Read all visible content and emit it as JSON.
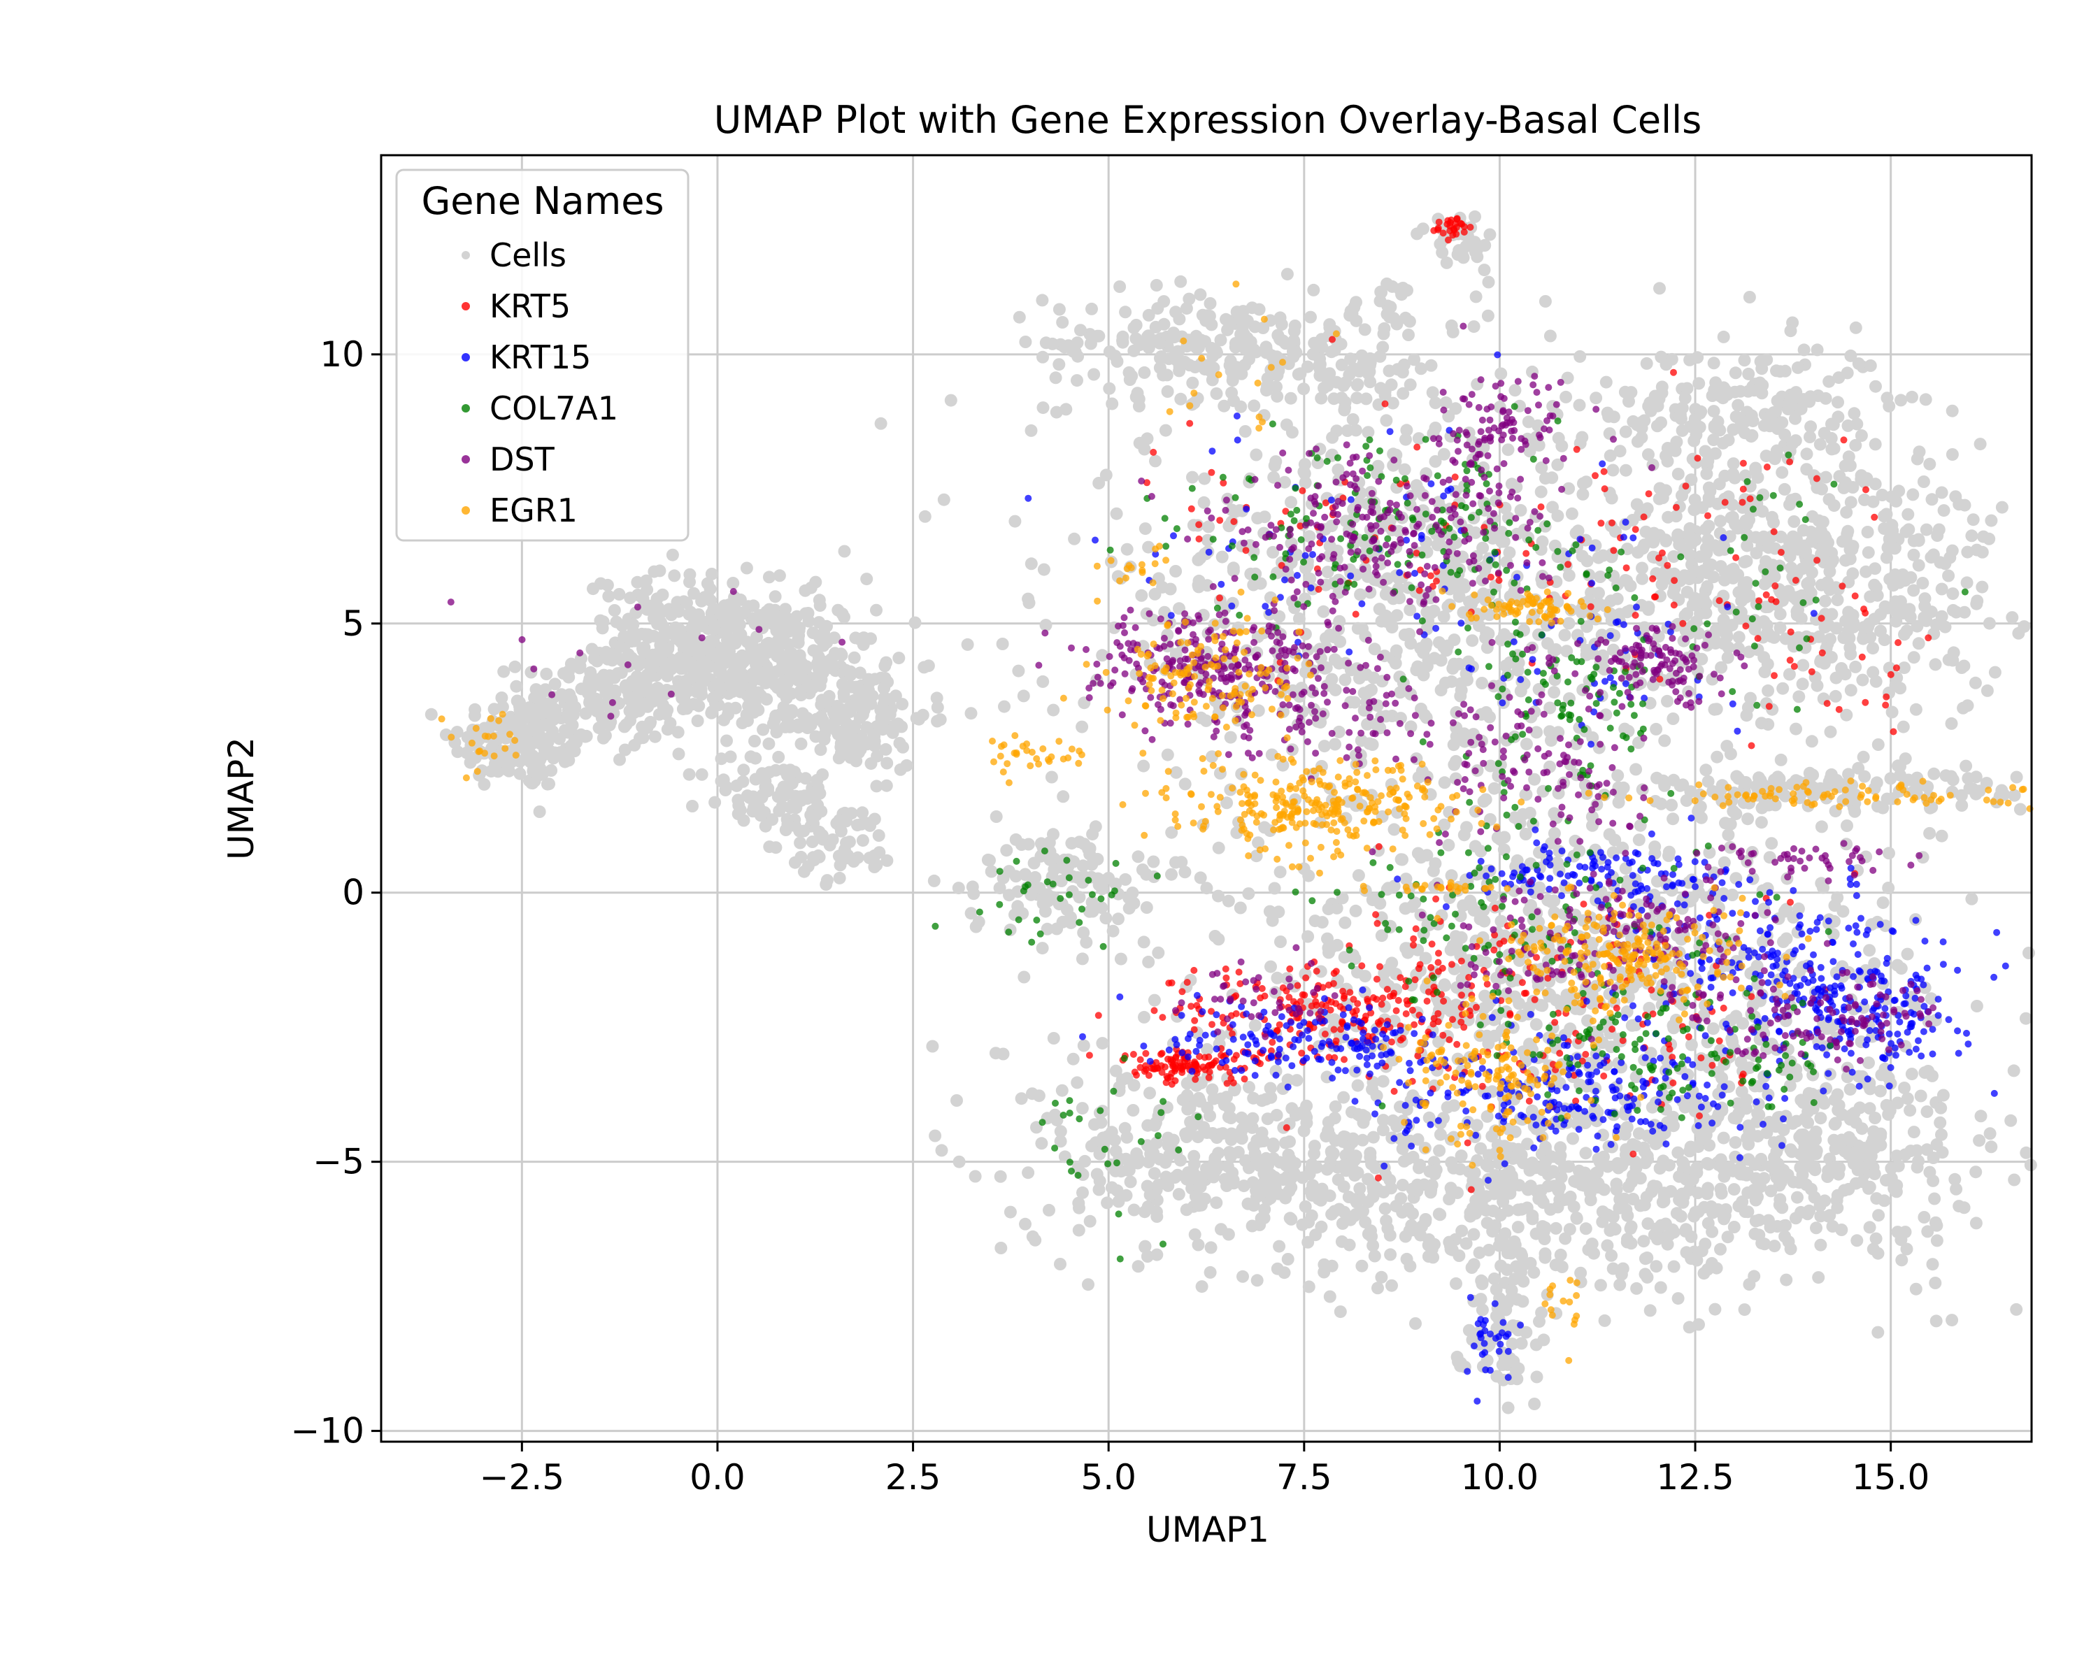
{
  "chart_data": {
    "type": "scatter",
    "title": "UMAP Plot with Gene Expression Overlay-Basal Cells",
    "xlabel": "UMAP1",
    "ylabel": "UMAP2",
    "xlim": [
      -4.3,
      16.8
    ],
    "ylim": [
      -10.2,
      13.7
    ],
    "xticks": [
      -2.5,
      0.0,
      2.5,
      5.0,
      7.5,
      10.0,
      12.5,
      15.0
    ],
    "xtick_labels": [
      "−2.5",
      "0.0",
      "2.5",
      "5.0",
      "7.5",
      "10.0",
      "12.5",
      "15.0"
    ],
    "yticks": [
      -10,
      -5,
      0,
      5,
      10
    ],
    "ytick_labels": [
      "−10",
      "−5",
      "0",
      "5",
      "10"
    ],
    "grid": true,
    "legend": {
      "title": "Gene Names",
      "placement": "upper-left",
      "entries": [
        {
          "label": "Cells",
          "color": "#d3d3d3"
        },
        {
          "label": "KRT5",
          "color": "#ff0000"
        },
        {
          "label": "KRT15",
          "color": "#0000ff"
        },
        {
          "label": "COL7A1",
          "color": "#008000"
        },
        {
          "label": "DST",
          "color": "#800080"
        },
        {
          "label": "EGR1",
          "color": "#ffa500"
        }
      ]
    },
    "series": [
      {
        "name": "Cells",
        "color": "#d3d3d3",
        "clusters": [
          {
            "center": [
              -2.5,
              2.8
            ],
            "spread": [
              0.45,
              0.45
            ],
            "n": 160
          },
          {
            "center": [
              -1.5,
              3.6
            ],
            "spread": [
              0.5,
              0.5
            ],
            "n": 140
          },
          {
            "center": [
              -0.5,
              4.5
            ],
            "spread": [
              0.6,
              0.7
            ],
            "n": 260
          },
          {
            "center": [
              0.6,
              4.3
            ],
            "spread": [
              0.7,
              0.6
            ],
            "n": 260
          },
          {
            "center": [
              1.7,
              3.3
            ],
            "spread": [
              0.5,
              0.5
            ],
            "n": 170
          },
          {
            "center": [
              0.7,
              1.8
            ],
            "spread": [
              0.45,
              0.35
            ],
            "n": 80
          },
          {
            "center": [
              1.6,
              0.9
            ],
            "spread": [
              0.35,
              0.35
            ],
            "n": 60
          },
          {
            "center": [
              6.2,
              10.2
            ],
            "spread": [
              1.0,
              0.5
            ],
            "n": 200
          },
          {
            "center": [
              8.0,
              9.8
            ],
            "spread": [
              0.5,
              0.4
            ],
            "n": 70
          },
          {
            "center": [
              13.2,
              9.0
            ],
            "spread": [
              0.9,
              0.6
            ],
            "n": 180
          },
          {
            "center": [
              14.5,
              5.8
            ],
            "spread": [
              1.0,
              1.4
            ],
            "n": 330
          },
          {
            "center": [
              12.7,
              6.0
            ],
            "spread": [
              0.9,
              1.2
            ],
            "n": 240
          },
          {
            "center": [
              9.0,
              5.4
            ],
            "spread": [
              2.3,
              2.0
            ],
            "n": 900
          },
          {
            "center": [
              11.0,
              -1.5
            ],
            "spread": [
              2.2,
              1.6
            ],
            "n": 850
          },
          {
            "center": [
              11.0,
              -5.5
            ],
            "spread": [
              2.4,
              0.9
            ],
            "n": 700
          },
          {
            "center": [
              6.3,
              -4.8
            ],
            "spread": [
              1.1,
              0.9
            ],
            "n": 320
          },
          {
            "center": [
              14.3,
              -4.5
            ],
            "spread": [
              0.9,
              0.9
            ],
            "n": 200
          },
          {
            "center": [
              4.3,
              0.2
            ],
            "spread": [
              0.55,
              0.5
            ],
            "n": 120
          },
          {
            "center": [
              10.0,
              -7.6
            ],
            "spread": [
              0.3,
              0.9
            ],
            "n": 90
          },
          {
            "center": [
              14.0,
              1.9
            ],
            "spread": [
              1.5,
              0.2
            ],
            "n": 150
          },
          {
            "center": [
              9.5,
              12.1
            ],
            "spread": [
              0.2,
              0.3
            ],
            "n": 40
          },
          {
            "center": [
              8.6,
              10.8
            ],
            "spread": [
              0.12,
              0.3
            ],
            "n": 20
          }
        ]
      },
      {
        "name": "KRT5",
        "color": "#ff0000",
        "clusters": [
          {
            "center": [
              9.4,
              12.4
            ],
            "spread": [
              0.12,
              0.1
            ],
            "n": 25
          },
          {
            "center": [
              6.0,
              -3.2
            ],
            "spread": [
              0.5,
              0.15
            ],
            "n": 110
          },
          {
            "center": [
              7.8,
              -2.2
            ],
            "spread": [
              1.0,
              0.45
            ],
            "n": 190
          },
          {
            "center": [
              10.8,
              -2.2
            ],
            "spread": [
              1.6,
              1.2
            ],
            "n": 170
          },
          {
            "center": [
              12.2,
              6.3
            ],
            "spread": [
              1.6,
              1.2
            ],
            "n": 60
          },
          {
            "center": [
              14.0,
              4.5
            ],
            "spread": [
              0.8,
              1.0
            ],
            "n": 30
          },
          {
            "center": [
              8.5,
              6.5
            ],
            "spread": [
              1.5,
              1.0
            ],
            "n": 60
          }
        ]
      },
      {
        "name": "KRT15",
        "color": "#0000ff",
        "clusters": [
          {
            "center": [
              11.3,
              0.3
            ],
            "spread": [
              1.0,
              0.3
            ],
            "n": 120
          },
          {
            "center": [
              13.5,
              -1.3
            ],
            "spread": [
              0.9,
              0.8
            ],
            "n": 170
          },
          {
            "center": [
              14.7,
              -2.3
            ],
            "spread": [
              0.6,
              0.5
            ],
            "n": 150
          },
          {
            "center": [
              11.0,
              -3.8
            ],
            "spread": [
              1.3,
              0.5
            ],
            "n": 210
          },
          {
            "center": [
              7.6,
              -2.7
            ],
            "spread": [
              0.9,
              0.4
            ],
            "n": 150
          },
          {
            "center": [
              9.9,
              -8.3
            ],
            "spread": [
              0.2,
              0.35
            ],
            "n": 30
          },
          {
            "center": [
              8.5,
              6.2
            ],
            "spread": [
              1.6,
              1.2
            ],
            "n": 70
          },
          {
            "center": [
              11.5,
              4.5
            ],
            "spread": [
              1.0,
              0.8
            ],
            "n": 40
          }
        ]
      },
      {
        "name": "COL7A1",
        "color": "#008000",
        "clusters": [
          {
            "center": [
              8.7,
              6.8
            ],
            "spread": [
              1.3,
              0.9
            ],
            "n": 150
          },
          {
            "center": [
              10.9,
              3.6
            ],
            "spread": [
              0.8,
              1.0
            ],
            "n": 90
          },
          {
            "center": [
              10.5,
              -0.5
            ],
            "spread": [
              1.4,
              1.0
            ],
            "n": 110
          },
          {
            "center": [
              12.2,
              -3.0
            ],
            "spread": [
              1.2,
              0.6
            ],
            "n": 110
          },
          {
            "center": [
              4.4,
              0.0
            ],
            "spread": [
              0.5,
              0.4
            ],
            "n": 30
          },
          {
            "center": [
              5.2,
              -4.5
            ],
            "spread": [
              0.6,
              0.8
            ],
            "n": 25
          },
          {
            "center": [
              13.5,
              5.5
            ],
            "spread": [
              0.8,
              1.2
            ],
            "n": 30
          }
        ]
      },
      {
        "name": "DST",
        "color": "#800080",
        "clusters": [
          {
            "center": [
              6.3,
              4.2
            ],
            "spread": [
              0.8,
              0.55
            ],
            "n": 260
          },
          {
            "center": [
              8.4,
              6.7
            ],
            "spread": [
              1.1,
              0.7
            ],
            "n": 230
          },
          {
            "center": [
              10.0,
              8.6
            ],
            "spread": [
              0.4,
              0.5
            ],
            "n": 90
          },
          {
            "center": [
              12.0,
              4.2
            ],
            "spread": [
              0.5,
              0.35
            ],
            "n": 110
          },
          {
            "center": [
              10.7,
              2.3
            ],
            "spread": [
              0.8,
              0.8
            ],
            "n": 110
          },
          {
            "center": [
              11.5,
              -0.9
            ],
            "spread": [
              1.0,
              0.6
            ],
            "n": 170
          },
          {
            "center": [
              14.2,
              -2.2
            ],
            "spread": [
              0.8,
              0.4
            ],
            "n": 110
          },
          {
            "center": [
              13.7,
              0.6
            ],
            "spread": [
              0.6,
              0.2
            ],
            "n": 45
          },
          {
            "center": [
              7.0,
              -2.0
            ],
            "spread": [
              0.5,
              0.3
            ],
            "n": 40
          },
          {
            "center": [
              8.0,
              3.3
            ],
            "spread": [
              0.8,
              0.6
            ],
            "n": 80
          },
          {
            "center": [
              -1.0,
              4.2
            ],
            "spread": [
              1.5,
              0.8
            ],
            "n": 14
          }
        ]
      },
      {
        "name": "EGR1",
        "color": "#ffa500",
        "clusters": [
          {
            "center": [
              7.7,
              1.6
            ],
            "spread": [
              0.9,
              0.4
            ],
            "n": 260
          },
          {
            "center": [
              6.3,
              4.0
            ],
            "spread": [
              0.6,
              0.6
            ],
            "n": 130
          },
          {
            "center": [
              10.4,
              5.3
            ],
            "spread": [
              0.4,
              0.15
            ],
            "n": 70
          },
          {
            "center": [
              11.6,
              -1.2
            ],
            "spread": [
              0.8,
              0.5
            ],
            "n": 210
          },
          {
            "center": [
              10.0,
              -3.4
            ],
            "spread": [
              0.6,
              0.6
            ],
            "n": 140
          },
          {
            "center": [
              14.3,
              1.8
            ],
            "spread": [
              1.3,
              0.12
            ],
            "n": 80
          },
          {
            "center": [
              4.0,
              2.6
            ],
            "spread": [
              0.25,
              0.15
            ],
            "n": 30
          },
          {
            "center": [
              -2.9,
              2.8
            ],
            "spread": [
              0.2,
              0.3
            ],
            "n": 20
          },
          {
            "center": [
              9.5,
              0.1
            ],
            "spread": [
              0.6,
              0.05
            ],
            "n": 25
          },
          {
            "center": [
              10.8,
              -7.5
            ],
            "spread": [
              0.2,
              0.3
            ],
            "n": 15
          },
          {
            "center": [
              5.4,
              6.0
            ],
            "spread": [
              0.3,
              0.2
            ],
            "n": 15
          },
          {
            "center": [
              6.8,
              9.5
            ],
            "spread": [
              0.4,
              0.8
            ],
            "n": 15
          }
        ]
      }
    ]
  }
}
